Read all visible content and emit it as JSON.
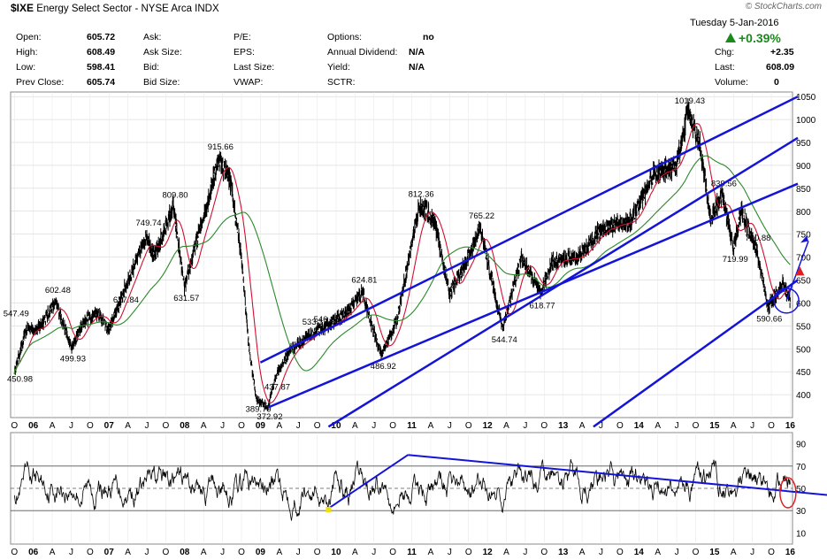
{
  "header": {
    "symbol": "$IXE",
    "name": "Energy Select Sector - NYSE Arca INDX",
    "brand": "© StockCharts.com",
    "date": "Tuesday  5-Jan-2016",
    "pct_change": "+0.39%",
    "quote": [
      {
        "label": "Open:",
        "value": "605.72"
      },
      {
        "label": "High:",
        "value": "608.49"
      },
      {
        "label": "Low:",
        "value": "598.41"
      },
      {
        "label": "Prev Close:",
        "value": "605.74"
      },
      {
        "label": "Ask:",
        "value": ""
      },
      {
        "label": "Ask Size:",
        "value": ""
      },
      {
        "label": "Bid:",
        "value": ""
      },
      {
        "label": "Bid Size:",
        "value": ""
      },
      {
        "label": "P/E:",
        "value": ""
      },
      {
        "label": "EPS:",
        "value": ""
      },
      {
        "label": "Last Size:",
        "value": ""
      },
      {
        "label": "VWAP:",
        "value": ""
      },
      {
        "label": "Options:",
        "value": "no"
      },
      {
        "label": "Annual Dividend:",
        "value": "N/A"
      },
      {
        "label": "Yield:",
        "value": "N/A"
      },
      {
        "label": "SCTR:",
        "value": ""
      },
      {
        "label": "Chg:",
        "value": "+2.35"
      },
      {
        "label": "Last:",
        "value": "608.09"
      },
      {
        "label": "Volume:",
        "value": "0"
      }
    ]
  },
  "colors": {
    "price": "#000000",
    "ma_short": "#d01030",
    "ma_long": "#2a8a2a",
    "channel": "#1414d8",
    "highlight": "#e02020",
    "grid": "#cccccc"
  },
  "chart_data": [
    {
      "type": "line",
      "panel": "price",
      "ylim": [
        350,
        1060
      ],
      "yticks": [
        400,
        450,
        500,
        550,
        600,
        650,
        700,
        750,
        800,
        850,
        900,
        950,
        1000,
        1050
      ],
      "x_ticks": [
        "O",
        "06",
        "A",
        "J",
        "O",
        "07",
        "A",
        "J",
        "O",
        "08",
        "A",
        "J",
        "O",
        "09",
        "A",
        "J",
        "O",
        "10",
        "A",
        "J",
        "O",
        "11",
        "A",
        "J",
        "O",
        "12",
        "A",
        "J",
        "O",
        "13",
        "A",
        "J",
        "O",
        "14",
        "A",
        "J",
        "O",
        "15",
        "A",
        "J",
        "O",
        "16"
      ],
      "series": [
        {
          "kind": "price",
          "x": [
            2005.75,
            2005.92,
            2006.05,
            2006.3,
            2006.5,
            2006.67,
            2006.85,
            2007.0,
            2007.2,
            2007.5,
            2007.6,
            2007.85,
            2008.0,
            2008.1,
            2008.3,
            2008.45,
            2008.6,
            2008.75,
            2008.85,
            2008.95,
            2009.1,
            2009.2,
            2009.4,
            2009.7,
            2009.85,
            2010.15,
            2010.35,
            2010.45,
            2010.6,
            2010.8,
            2011.1,
            2011.3,
            2011.5,
            2011.75,
            2011.9,
            2012.2,
            2012.45,
            2012.7,
            2012.85,
            2013.2,
            2013.5,
            2013.9,
            2014.2,
            2014.5,
            2014.65,
            2014.8,
            2014.95,
            2015.1,
            2015.25,
            2015.35,
            2015.55,
            2015.7,
            2015.9,
            2016.0
          ],
          "y": [
            450.98,
            547.49,
            540,
            602.48,
            499.93,
            560,
            580,
            540,
            627.84,
            749.74,
            700,
            809.8,
            631.57,
            700,
            820,
            915.66,
            870,
            700,
            500,
            389.79,
            372.92,
            437.87,
            500,
            533.17,
            546.81,
            580,
            624.81,
            560,
            486.92,
            560,
            812.36,
            780,
            620,
            700,
            765.22,
            544.74,
            700,
            618.77,
            690,
            700,
            760,
            780,
            880,
            900,
            1019.43,
            950,
            780,
            839.56,
            719.99,
            800,
            720.88,
            590.66,
            640,
            608.09
          ]
        }
      ],
      "annotations": [
        "547.49",
        "450.98",
        "602.48",
        "499.93",
        "749.74",
        "627.84",
        "809.80",
        "631.57",
        "915.66",
        "533.17",
        "546.81",
        "389.79",
        "372.92",
        "437.87",
        "624.81",
        "486.92",
        "812.36",
        "544.74",
        "765.22",
        "618.77",
        "1019.43",
        "839.56",
        "719.99",
        "720.88",
        "590.66"
      ]
    },
    {
      "type": "line",
      "panel": "rsi",
      "ylim": [
        0,
        100
      ],
      "yticks": [
        10,
        30,
        50,
        70,
        90
      ],
      "reference_lines": [
        30,
        50,
        70
      ],
      "x_ticks": [
        "O",
        "06",
        "A",
        "J",
        "O",
        "07",
        "A",
        "J",
        "O",
        "08",
        "A",
        "J",
        "O",
        "09",
        "A",
        "J",
        "O",
        "10",
        "A",
        "J",
        "O",
        "11",
        "A",
        "J",
        "O",
        "12",
        "A",
        "J",
        "O",
        "13",
        "A",
        "J",
        "O",
        "14",
        "A",
        "J",
        "O",
        "15",
        "A",
        "J",
        "O",
        "16"
      ]
    }
  ]
}
